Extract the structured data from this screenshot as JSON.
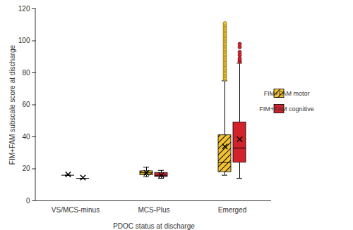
{
  "chart_data": {
    "type": "box",
    "x_label": "PDOC status at discharge",
    "y_label": "FIM+FAM subscale score at discharge",
    "categories": [
      "VS/MCS-minus",
      "MCS-Plus",
      "Emerged"
    ],
    "ylim": [
      0,
      120
    ],
    "yticks": [
      0,
      20,
      40,
      60,
      80,
      100,
      120
    ],
    "marker": "x",
    "legend": "right",
    "series": [
      {
        "name": "FIM+FAM motor",
        "color": "#f2c230",
        "min": [
          16,
          15,
          16
        ],
        "q1": [
          16,
          16,
          18
        ],
        "median": [
          16,
          17.5,
          24
        ],
        "q3": [
          16,
          18.5,
          41
        ],
        "max": [
          16,
          21,
          75
        ],
        "mean": [
          16.5,
          17.5,
          34
        ],
        "outliers": [
          [],
          [],
          [
            76,
            77,
            78,
            79,
            80,
            81,
            82,
            83,
            84,
            85,
            86,
            87,
            88,
            89,
            90,
            91,
            92,
            93,
            94,
            95,
            96,
            97,
            98,
            99,
            100,
            101,
            102,
            103,
            104,
            105,
            106,
            107,
            108,
            109,
            110,
            111
          ]
        ]
      },
      {
        "name": "FIM+FAM cognitive",
        "color": "#d2232a",
        "min": [
          14,
          14,
          14
        ],
        "q1": [
          14,
          15,
          24
        ],
        "median": [
          14,
          16,
          33
        ],
        "q3": [
          14,
          17.5,
          49
        ],
        "max": [
          14,
          19,
          86
        ],
        "mean": [
          14.5,
          16,
          38.5
        ],
        "outliers": [
          [],
          [],
          [
            87,
            88,
            89,
            91,
            93,
            96,
            98
          ]
        ]
      }
    ]
  }
}
